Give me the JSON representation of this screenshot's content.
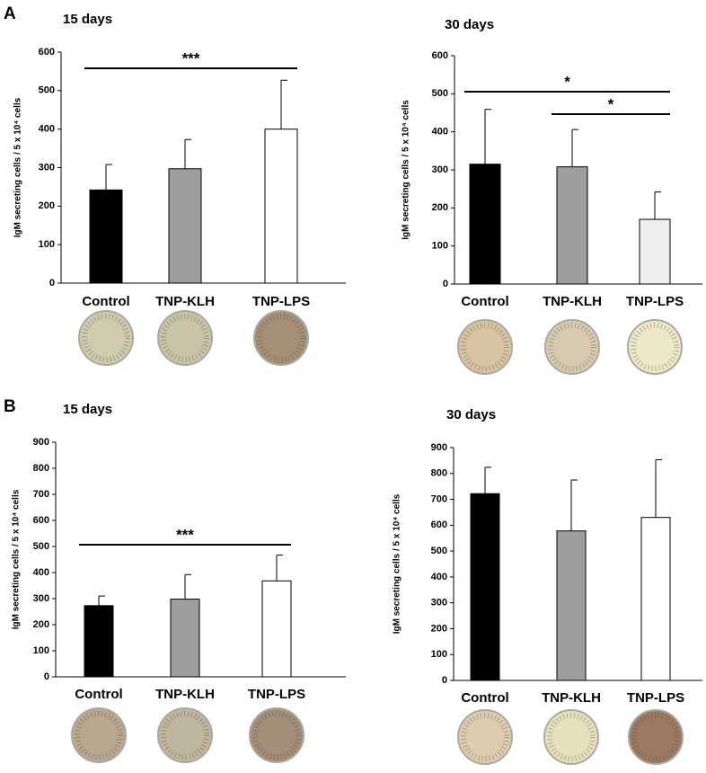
{
  "panel_labels": [
    "A",
    "B"
  ],
  "chart_data": [
    {
      "type": "bar",
      "title": "15 days",
      "ylabel": "IgM secreting cells / 5 x 10⁴ cells",
      "categories": [
        "Control",
        "TNP-KLH",
        "TNP-LPS"
      ],
      "values": [
        242,
        297,
        400
      ],
      "errors": [
        66,
        76,
        127
      ],
      "colors": [
        "#000000",
        "#a09d9e",
        "#ffffff"
      ],
      "ylim": [
        0,
        600
      ],
      "yticks": [
        0,
        100,
        200,
        300,
        400,
        500,
        600
      ],
      "annotations": [
        {
          "text": "***",
          "from": 0,
          "to": 2
        }
      ]
    },
    {
      "type": "bar",
      "title": "30 days",
      "ylabel": "IgM secreting cells / 5 x 10⁴ cells",
      "categories": [
        "Control",
        "TNP-KLH",
        "TNP-LPS"
      ],
      "values": [
        315,
        308,
        170
      ],
      "errors": [
        144,
        98,
        72
      ],
      "colors": [
        "#000000",
        "#a09d9e",
        "#eeeeee"
      ],
      "ylim": [
        0,
        600
      ],
      "yticks": [
        0,
        100,
        200,
        300,
        400,
        500,
        600
      ],
      "annotations": [
        {
          "text": "*",
          "from": 0,
          "to": 2
        },
        {
          "text": "*",
          "from": 1,
          "to": 2
        }
      ]
    },
    {
      "type": "bar",
      "title": "15 days",
      "ylabel": "IgM secreting cells / 5 x 10⁴ cells",
      "categories": [
        "Control",
        "TNP-KLH",
        "TNP-LPS"
      ],
      "values": [
        273,
        298,
        368
      ],
      "errors": [
        37,
        94,
        99
      ],
      "colors": [
        "#000000",
        "#a09d9e",
        "#ffffff"
      ],
      "ylim": [
        0,
        900
      ],
      "yticks": [
        0,
        100,
        200,
        300,
        400,
        500,
        600,
        700,
        800,
        900
      ],
      "annotations": [
        {
          "text": "***",
          "from": 0,
          "to": 2
        }
      ]
    },
    {
      "type": "bar",
      "title": "30 days",
      "ylabel": "IgM secreting cells / 5 x 10⁴ cells",
      "categories": [
        "Control",
        "TNP-KLH",
        "TNP-LPS"
      ],
      "values": [
        722,
        578,
        630
      ],
      "errors": [
        102,
        197,
        223
      ],
      "colors": [
        "#000000",
        "#a09d9e",
        "#ffffff"
      ],
      "ylim": [
        0,
        900
      ],
      "yticks": [
        0,
        100,
        200,
        300,
        400,
        500,
        600,
        700,
        800,
        900
      ],
      "annotations": []
    }
  ]
}
